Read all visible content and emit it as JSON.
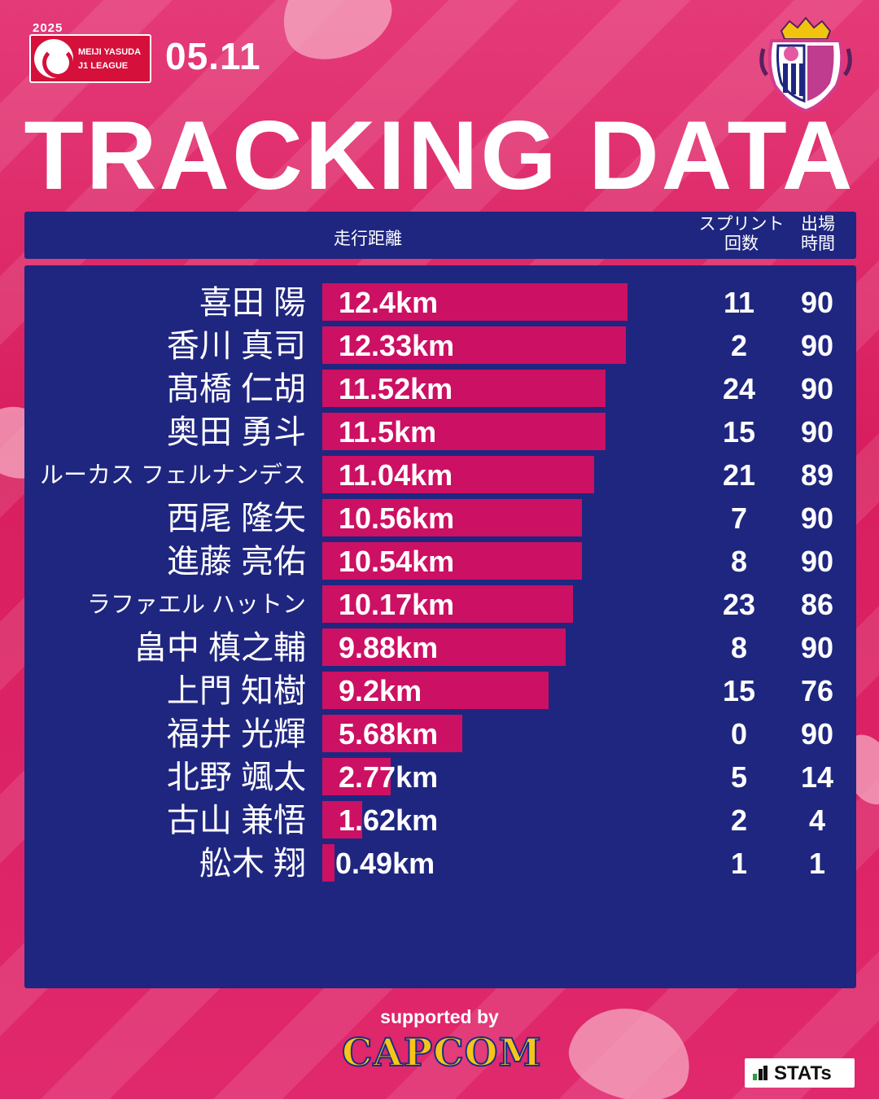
{
  "header": {
    "league_year": "2025",
    "league_line1": "MEIJI YASUDA",
    "league_line2": "J1 LEAGUE",
    "match_date": "05.11",
    "title": "TRACKING DATA",
    "club_logo_icon": "cerezo-osaka-crest-icon"
  },
  "columns": {
    "distance": "走行距離",
    "sprint_line1": "スプリント",
    "sprint_line2": "回数",
    "minutes_line1": "出場",
    "minutes_line2": "時間"
  },
  "chart_data": {
    "type": "bar",
    "orientation": "horizontal",
    "title": "TRACKING DATA",
    "xlim": [
      0,
      12.4
    ],
    "categories": [
      "喜田 陽",
      "香川 真司",
      "髙橋 仁胡",
      "奥田 勇斗",
      "ルーカス フェルナンデス",
      "西尾 隆矢",
      "進藤 亮佑",
      "ラファエル ハットン",
      "畠中 槙之輔",
      "上門 知樹",
      "福井 光輝",
      "北野 颯太",
      "古山 兼悟",
      "舩木 翔"
    ],
    "series": [
      {
        "name": "走行距離",
        "values": [
          12.4,
          12.33,
          11.52,
          11.5,
          11.04,
          10.56,
          10.54,
          10.17,
          9.88,
          9.2,
          5.68,
          2.77,
          1.62,
          0.49
        ]
      }
    ],
    "distance_labels": [
      "12.4km",
      "12.33km",
      "11.52km",
      "11.5km",
      "11.04km",
      "10.56km",
      "10.54km",
      "10.17km",
      "9.88km",
      "9.2km",
      "5.68km",
      "2.77km",
      "1.62km",
      "0.49km"
    ],
    "sprints": [
      "11",
      "2",
      "24",
      "15",
      "21",
      "7",
      "8",
      "23",
      "8",
      "15",
      "0",
      "5",
      "2",
      "1"
    ],
    "minutes": [
      "90",
      "90",
      "90",
      "90",
      "89",
      "90",
      "90",
      "86",
      "90",
      "76",
      "90",
      "14",
      "4",
      "1"
    ]
  },
  "footer": {
    "supported_by": "supported by",
    "sponsor": "CAPCOM",
    "provider": "STATs",
    "provider_icon": "stats-bar-icon"
  },
  "colors": {
    "background": "#e0266a",
    "panel": "#1f2680",
    "bar": "#cc1063"
  }
}
